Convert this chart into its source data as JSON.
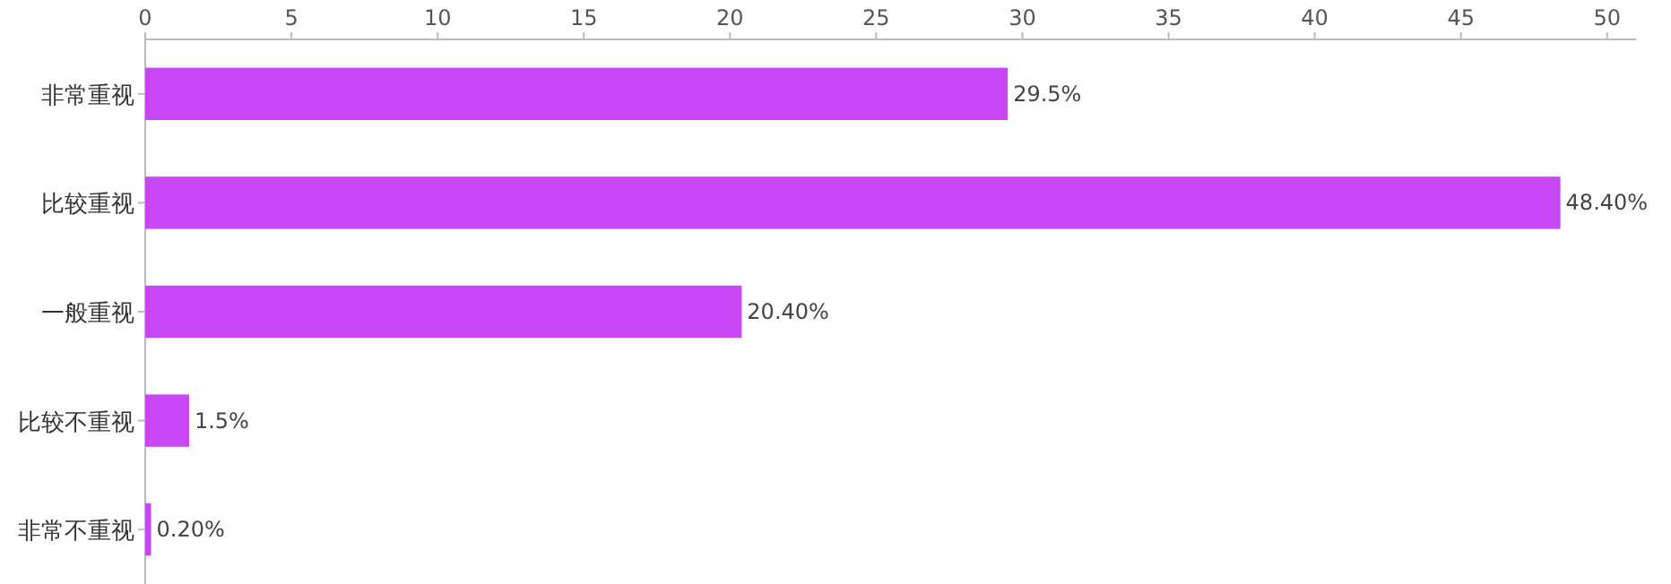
{
  "chart_data": {
    "type": "bar",
    "orientation": "horizontal",
    "categories": [
      "非常重视",
      "比较重视",
      "一般重视",
      "比较不重视",
      "非常不重视"
    ],
    "values": [
      29.5,
      48.4,
      20.4,
      1.5,
      0.2
    ],
    "value_labels": [
      "29.5%",
      "48.40%",
      "20.40%",
      "1.5%",
      "0.20%"
    ],
    "color": "#c847f5",
    "xlim": [
      0,
      51
    ],
    "xticks": [
      0,
      5,
      10,
      15,
      20,
      25,
      30,
      35,
      40,
      45,
      50
    ]
  }
}
